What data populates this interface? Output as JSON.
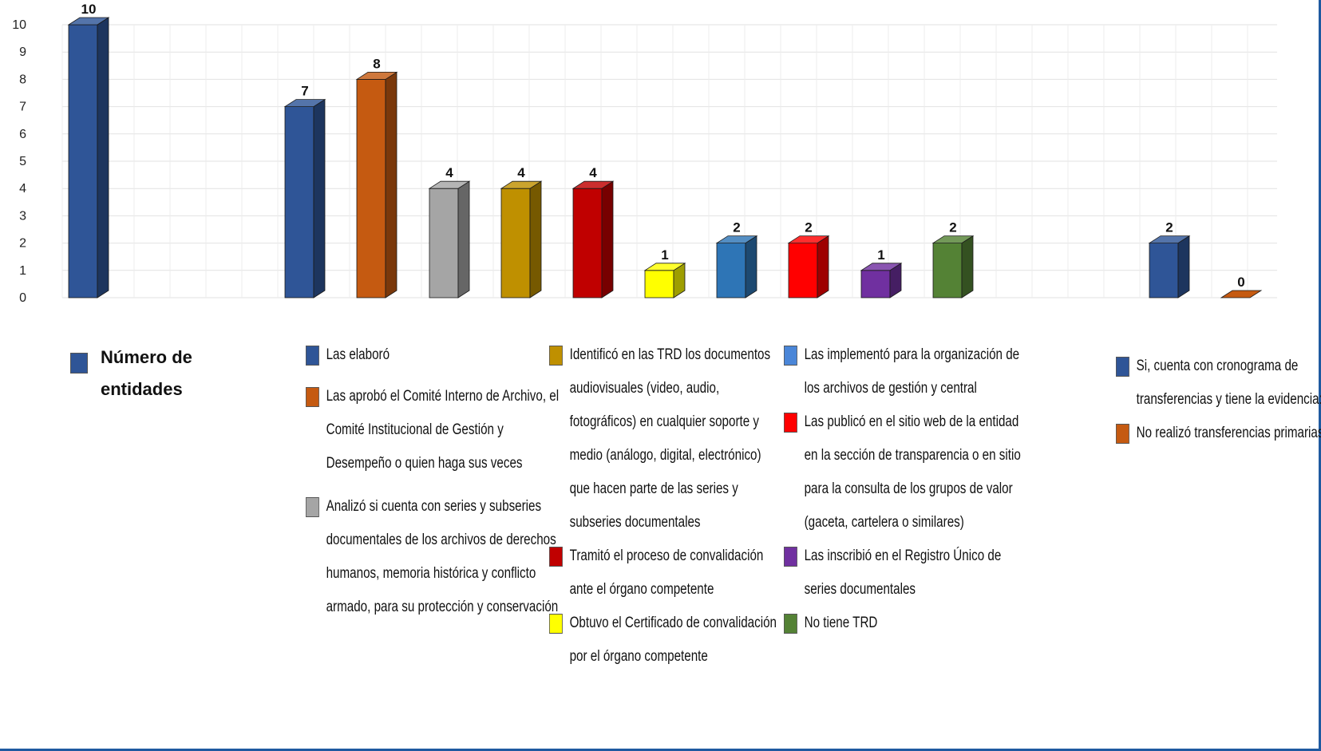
{
  "chart_data": {
    "type": "bar",
    "ylim": [
      0,
      10
    ],
    "yticks": [
      "0",
      "1",
      "2",
      "3",
      "4",
      "5",
      "6",
      "7",
      "8",
      "9",
      "10"
    ],
    "grid": true,
    "bars": [
      {
        "value": 10,
        "label": "10",
        "color": "#2f5597"
      },
      {
        "value": 7,
        "label": "7",
        "color": "#2f5597"
      },
      {
        "value": 8,
        "label": "8",
        "color": "#c55a11"
      },
      {
        "value": 4,
        "label": "4",
        "color": "#a5a5a5"
      },
      {
        "value": 4,
        "label": "4",
        "color": "#bf9000"
      },
      {
        "value": 4,
        "label": "4",
        "color": "#c00000"
      },
      {
        "value": 1,
        "label": "1",
        "color": "#ffff00"
      },
      {
        "value": 2,
        "label": "2",
        "color": "#2e75b6"
      },
      {
        "value": 2,
        "label": "2",
        "color": "#ff0000"
      },
      {
        "value": 1,
        "label": "1",
        "color": "#7030a0"
      },
      {
        "value": 2,
        "label": "2",
        "color": "#548235"
      },
      {
        "value": 2,
        "label": "2",
        "color": "#2f5597"
      },
      {
        "value": 0,
        "label": "0",
        "color": "#c55a11"
      }
    ]
  },
  "legend": {
    "group1": [
      {
        "text": "Número de entidades",
        "color": "#2f5597"
      }
    ],
    "group2": [
      {
        "text": "Las elaboró",
        "color": "#2f5597"
      },
      {
        "text": "Las aprobó el Comité Interno de Archivo, el Comité Institucional de Gestión y Desempeño o quien haga sus veces",
        "color": "#c55a11"
      },
      {
        "text": "Analizó si cuenta con series y subseries documentales de los archivos de derechos humanos, memoria histórica y conflicto armado, para su protección y conservación",
        "color": "#a5a5a5"
      }
    ],
    "group3": [
      {
        "text": "Identificó en las TRD los documentos audiovisuales (video, audio, fotográficos) en cualquier soporte y medio (análogo, digital, electrónico) que hacen parte de las series y subseries documentales",
        "color": "#bf9000"
      },
      {
        "text": "Tramitó el proceso de convalidación ante el órgano competente",
        "color": "#c00000"
      },
      {
        "text": "Obtuvo el Certificado de convalidación por el órgano competente",
        "color": "#ffff00"
      }
    ],
    "group4": [
      {
        "text": "Las implementó para la organización de los archivos de gestión y central",
        "color": "#4a86d8"
      },
      {
        "text": "Las publicó en el sitio web de la entidad en la sección de transparencia o en sitio para la consulta de los grupos de valor (gaceta, cartelera o similares)",
        "color": "#ff0000"
      },
      {
        "text": "Las inscribió en el Registro Único de series documentales",
        "color": "#7030a0"
      },
      {
        "text": "No tiene TRD",
        "color": "#548235"
      }
    ],
    "group5": [
      {
        "text": "Si, cuenta con cronograma de transferencias y tiene la evidencia:",
        "color": "#2f5597"
      },
      {
        "text": "No realizó transferencias primarias",
        "color": "#c55a11"
      }
    ]
  }
}
